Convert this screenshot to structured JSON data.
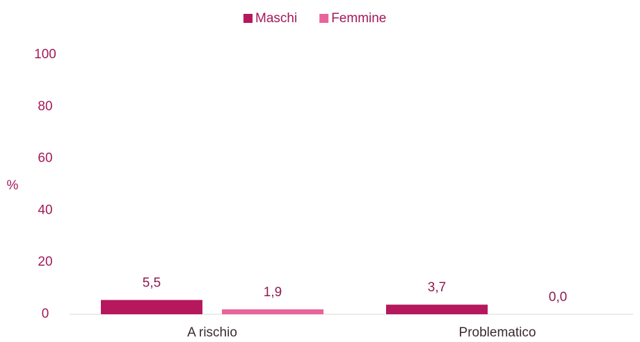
{
  "chart_data": {
    "type": "bar",
    "y_label": "%",
    "categories": [
      "A rischio",
      "Problematico"
    ],
    "series": [
      {
        "name": "Maschi",
        "color": "#b5185c",
        "values": [
          5.5,
          3.7
        ],
        "value_labels": [
          "5,5",
          "3,7"
        ]
      },
      {
        "name": "Femmine",
        "color": "#e8649b",
        "values": [
          1.9,
          0.0
        ],
        "value_labels": [
          "1,9",
          "0,0"
        ]
      }
    ],
    "ylim": [
      0,
      100
    ],
    "yticks": [
      0,
      20,
      40,
      60,
      80,
      100
    ],
    "grid": false,
    "legend": "top"
  }
}
